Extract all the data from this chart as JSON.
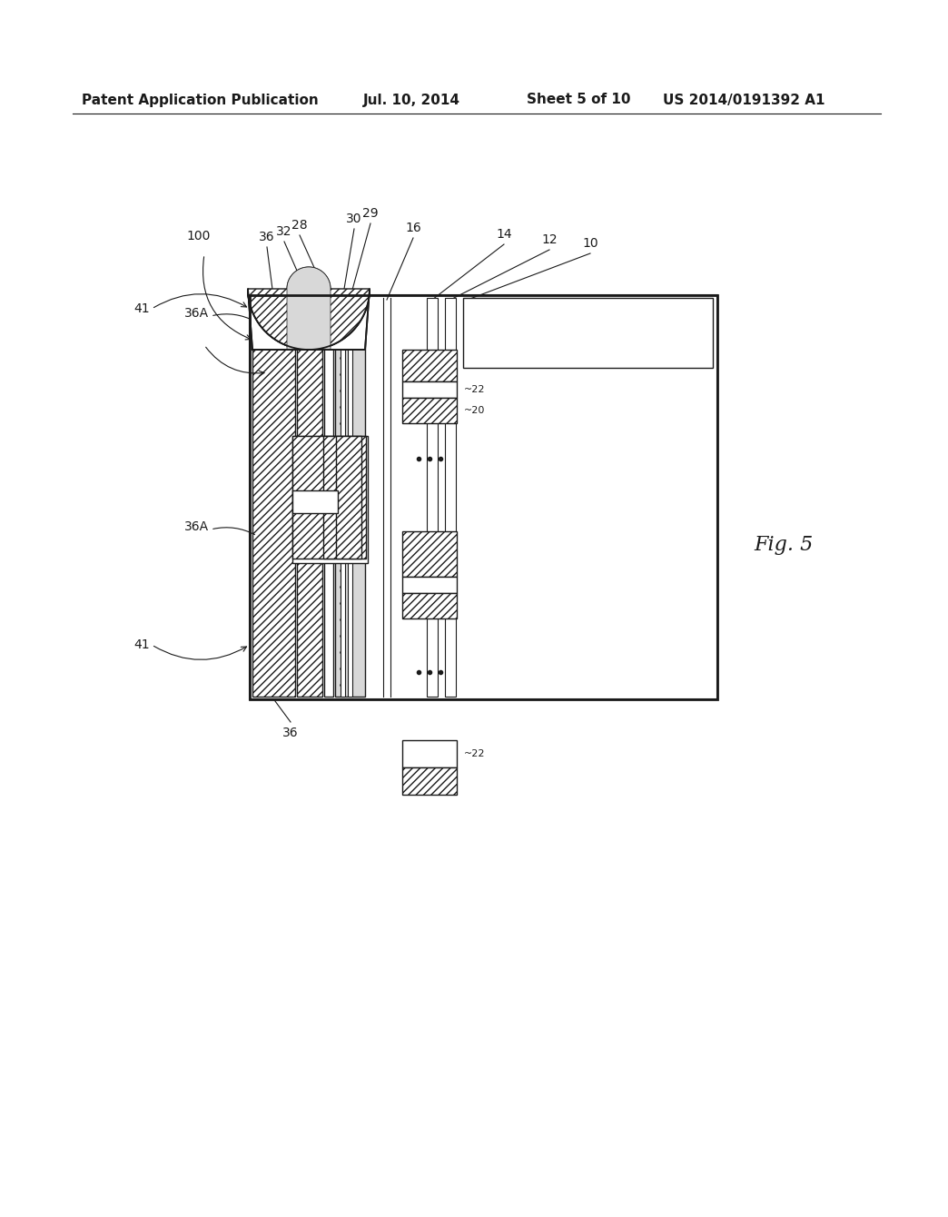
{
  "bg_color": "#ffffff",
  "header_text": "Patent Application Publication",
  "header_date": "Jul. 10, 2014",
  "header_sheet": "Sheet 5 of 10",
  "header_patent": "US 2014/0191392 A1",
  "fig_label": "Fig. 5",
  "lw": 1.0,
  "black": "#1a1a1a"
}
